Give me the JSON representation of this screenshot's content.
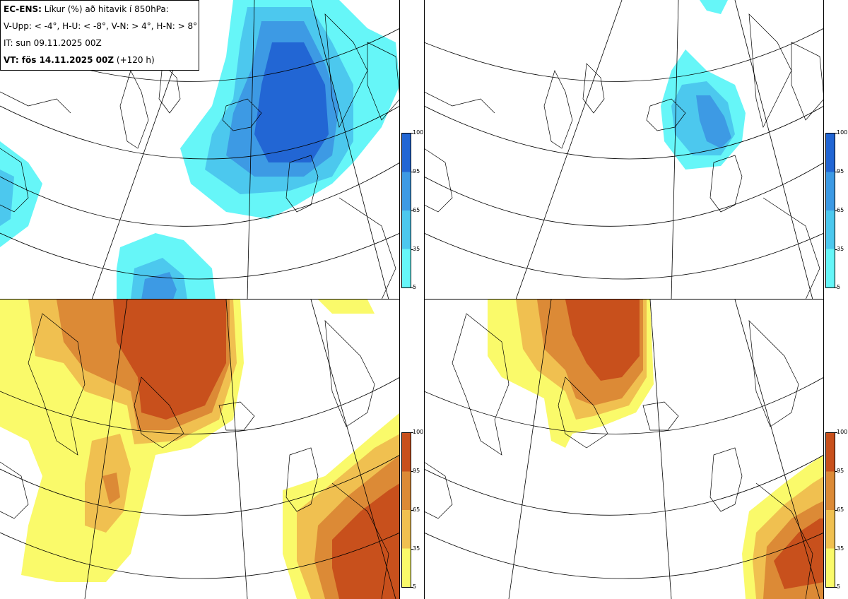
{
  "header": {
    "model": "EC-ENS:",
    "title": "Líkur (%) að hitavik í 850hPa:",
    "thresholds": "V-Upp: < -4°, H-U: < -8°, V-N: > 4°, H-N: > 8°",
    "initial_time": "IT: sun 09.11.2025 00Z",
    "valid_label": "VT: fös 14.11.2025 00Z",
    "lead_time": "(+120 h)"
  },
  "legend_ticks": [
    "100",
    "95",
    "65",
    "35",
    "5"
  ],
  "colors": {
    "cold": [
      "#66f6f8",
      "#4cc8ee",
      "#3d9ae4",
      "#2266d4"
    ],
    "warm": [
      "#fafa6a",
      "#f0c050",
      "#dc8a36",
      "#c8501c"
    ],
    "coast": "#000000",
    "grid": "#000000"
  },
  "panels": [
    {
      "id": "V-Upp",
      "palette": "cold"
    },
    {
      "id": "H-U",
      "palette": "cold"
    },
    {
      "id": "V-N",
      "palette": "warm"
    },
    {
      "id": "H-N",
      "palette": "warm"
    }
  ]
}
